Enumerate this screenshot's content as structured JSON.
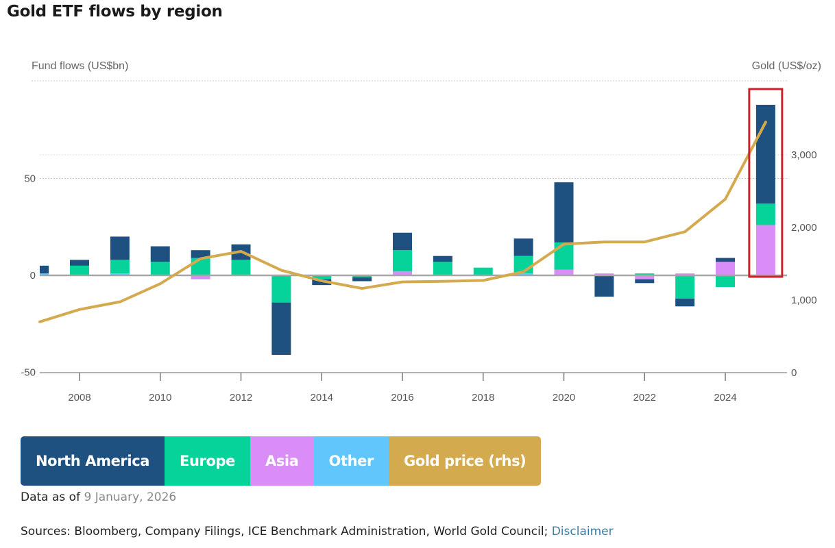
{
  "page": {
    "title": "Gold ETF flows by region",
    "data_as_of_label": "Data as of",
    "data_as_of_date": "9 January, 2026",
    "sources_text": "Sources: Bloomberg, Company Filings, ICE Benchmark Administration, World Gold Council;",
    "disclaimer_link": "Disclaimer"
  },
  "legend": [
    {
      "label": "North America",
      "color": "#1f5180"
    },
    {
      "label": "Europe",
      "color": "#05d39a"
    },
    {
      "label": "Asia",
      "color": "#da8cf7"
    },
    {
      "label": "Other",
      "color": "#60c6fb"
    },
    {
      "label": "Gold price (rhs)",
      "color": "#d4aa4f"
    }
  ],
  "highlight": {
    "category": "2025",
    "color": "#d21f2b"
  },
  "chart_data": {
    "type": "bar",
    "stacked": true,
    "title": "Gold ETF flows by region",
    "ylabel": "Fund flows (US$bn)",
    "y2label": "Gold (US$/oz)",
    "ylim": [
      -50,
      100
    ],
    "y_ticks": [
      -50,
      0,
      50
    ],
    "y_tick_labels": [
      "-50",
      "0",
      "50"
    ],
    "y2lim": [
      0,
      4000
    ],
    "y2_ticks": [
      0,
      1000,
      2000,
      3000
    ],
    "y2_tick_labels": [
      "0",
      "1,000",
      "2,000",
      "3,000"
    ],
    "x_ticks": [
      2008,
      2010,
      2012,
      2014,
      2016,
      2018,
      2020,
      2022,
      2024
    ],
    "x_tick_labels": [
      "2008",
      "2010",
      "2012",
      "2014",
      "2016",
      "2018",
      "2020",
      "2022",
      "2024"
    ],
    "xlim": [
      2007,
      2025
    ],
    "grid": "horizontal-dotted",
    "legend_position": "bottom-left",
    "categories": [
      2007,
      2008,
      2009,
      2010,
      2011,
      2012,
      2013,
      2014,
      2015,
      2016,
      2017,
      2018,
      2019,
      2020,
      2021,
      2022,
      2023,
      2024,
      2025
    ],
    "series": [
      {
        "name": "North America",
        "values": [
          4,
          3,
          12,
          8,
          4,
          8,
          -27,
          -3,
          -2,
          9,
          3,
          0,
          9,
          31,
          -11,
          -2,
          -4,
          2,
          51
        ]
      },
      {
        "name": "Europe",
        "values": [
          0,
          5,
          7,
          7,
          9,
          8,
          -14,
          -2,
          -1,
          11,
          7,
          4,
          9,
          14,
          0,
          1,
          -12,
          -6,
          11
        ]
      },
      {
        "name": "Asia",
        "values": [
          0,
          0,
          0,
          0,
          -2,
          0,
          0,
          0,
          0,
          2,
          0,
          0,
          0,
          3,
          1,
          -2,
          1,
          7,
          26
        ]
      },
      {
        "name": "Other",
        "values": [
          1,
          0,
          1,
          0,
          0,
          0,
          0,
          0,
          0,
          0,
          0,
          0,
          1,
          0,
          0,
          0,
          0,
          0,
          0
        ]
      }
    ],
    "line_series": {
      "name": "Gold price (rhs)",
      "axis": "right",
      "values": [
        700,
        870,
        975,
        1225,
        1570,
        1670,
        1410,
        1265,
        1160,
        1250,
        1257,
        1270,
        1390,
        1770,
        1800,
        1800,
        1940,
        2390,
        3450
      ]
    }
  }
}
